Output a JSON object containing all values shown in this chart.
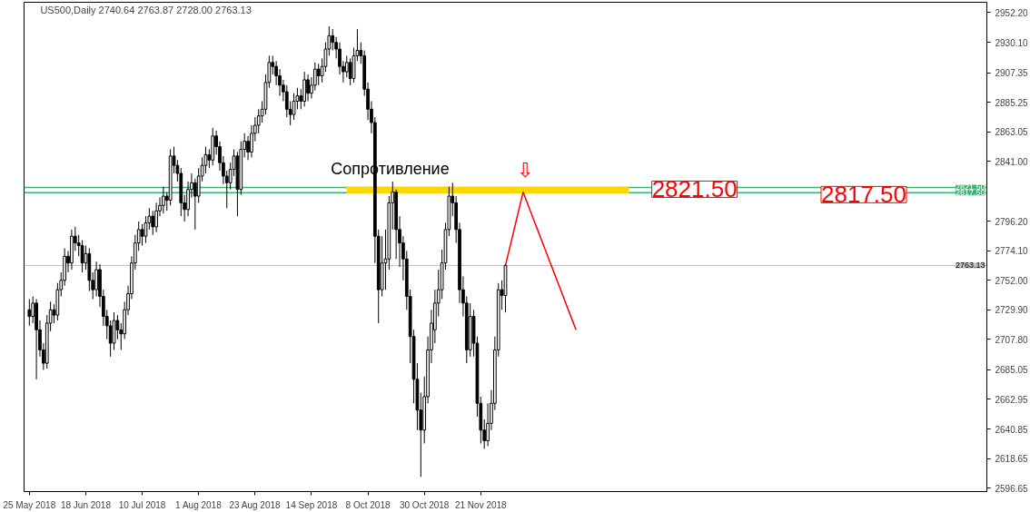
{
  "chart_data": {
    "type": "candlestick",
    "title": "US500,Daily  2740.64 2763.87 2728.00 2763.13",
    "categories": [
      "25 May 2018",
      null,
      null,
      null,
      null,
      null,
      null,
      null,
      null,
      null,
      null,
      null,
      null,
      null,
      null,
      null,
      "18 Jun 2018",
      null,
      null,
      null,
      null,
      null,
      null,
      null,
      null,
      null,
      null,
      null,
      null,
      null,
      null,
      null,
      "10 Jul 2018",
      null,
      null,
      null,
      null,
      null,
      null,
      null,
      null,
      null,
      null,
      null,
      null,
      null,
      null,
      null,
      "1 Aug 2018",
      null,
      null,
      null,
      null,
      null,
      null,
      null,
      null,
      null,
      null,
      null,
      null,
      null,
      null,
      null,
      "23 Aug 2018",
      null,
      null,
      null,
      null,
      null,
      null,
      null,
      null,
      null,
      null,
      null,
      null,
      null,
      null,
      null,
      "14 Sep 2018",
      null,
      null,
      null,
      null,
      null,
      null,
      null,
      null,
      null,
      null,
      null,
      null,
      null,
      null,
      null,
      "8 Oct 2018",
      null,
      null,
      null,
      null,
      null,
      null,
      null,
      null,
      null,
      null,
      null,
      null,
      null,
      null,
      null,
      "30 Oct 2018",
      null,
      null,
      null,
      null,
      null,
      null,
      null,
      null,
      null,
      null,
      null,
      null,
      null,
      null,
      null,
      "21 Nov 2018",
      null,
      null,
      null,
      null,
      null,
      null,
      null,
      null,
      null,
      null,
      null,
      null,
      null,
      null,
      null,
      null,
      null,
      null,
      null,
      null,
      null,
      null,
      null,
      null,
      null,
      null,
      null,
      null,
      null,
      null,
      null,
      null,
      null,
      null,
      null,
      null,
      null,
      null,
      null,
      null,
      null,
      null,
      null,
      null,
      null,
      null,
      null,
      null,
      null,
      null,
      null,
      null,
      null,
      null,
      null,
      null,
      null,
      null,
      null,
      null,
      null,
      null,
      null,
      null,
      null,
      null,
      null,
      null,
      null,
      null,
      null,
      null,
      null,
      null,
      null,
      null,
      null,
      null,
      null,
      null,
      null,
      null,
      null,
      null,
      null,
      null,
      null,
      null,
      null,
      null,
      null,
      null,
      null,
      null,
      null,
      null,
      null,
      null,
      null,
      null,
      null,
      null,
      null,
      null,
      null,
      null,
      null,
      null,
      null,
      null,
      null,
      null,
      null,
      null,
      null,
      null,
      null,
      null,
      null,
      null,
      null,
      null,
      null,
      null,
      null,
      null,
      null,
      null,
      null,
      null,
      null,
      null,
      null,
      null,
      null,
      null,
      null,
      null,
      null,
      null,
      null,
      null,
      null
    ],
    "ohlc": [
      [
        2730,
        2738,
        2718,
        2725
      ],
      [
        2725,
        2740,
        2720,
        2735
      ],
      [
        2735,
        2738,
        2678,
        2715
      ],
      [
        2715,
        2722,
        2695,
        2700
      ],
      [
        2700,
        2705,
        2685,
        2690
      ],
      [
        2690,
        2726,
        2686,
        2720
      ],
      [
        2720,
        2736,
        2714,
        2730
      ],
      [
        2730,
        2734,
        2720,
        2726
      ],
      [
        2726,
        2750,
        2722,
        2745
      ],
      [
        2745,
        2758,
        2740,
        2752
      ],
      [
        2752,
        2776,
        2748,
        2770
      ],
      [
        2770,
        2774,
        2758,
        2765
      ],
      [
        2765,
        2790,
        2760,
        2785
      ],
      [
        2785,
        2792,
        2774,
        2780
      ],
      [
        2780,
        2786,
        2770,
        2778
      ],
      [
        2778,
        2782,
        2758,
        2765
      ],
      [
        2765,
        2778,
        2760,
        2772
      ],
      [
        2772,
        2776,
        2744,
        2752
      ],
      [
        2752,
        2758,
        2738,
        2745
      ],
      [
        2745,
        2766,
        2740,
        2760
      ],
      [
        2760,
        2764,
        2732,
        2740
      ],
      [
        2740,
        2745,
        2718,
        2725
      ],
      [
        2725,
        2730,
        2708,
        2718
      ],
      [
        2718,
        2722,
        2695,
        2705
      ],
      [
        2705,
        2728,
        2700,
        2722
      ],
      [
        2722,
        2726,
        2708,
        2715
      ],
      [
        2715,
        2720,
        2700,
        2712
      ],
      [
        2712,
        2736,
        2708,
        2730
      ],
      [
        2730,
        2748,
        2726,
        2742
      ],
      [
        2742,
        2770,
        2738,
        2765
      ],
      [
        2765,
        2786,
        2760,
        2780
      ],
      [
        2780,
        2796,
        2774,
        2790
      ],
      [
        2790,
        2794,
        2778,
        2785
      ],
      [
        2785,
        2800,
        2780,
        2795
      ],
      [
        2795,
        2806,
        2790,
        2800
      ],
      [
        2800,
        2804,
        2786,
        2792
      ],
      [
        2792,
        2810,
        2788,
        2804
      ],
      [
        2804,
        2814,
        2800,
        2808
      ],
      [
        2808,
        2822,
        2802,
        2815
      ],
      [
        2815,
        2818,
        2804,
        2812
      ],
      [
        2812,
        2850,
        2808,
        2845
      ],
      [
        2845,
        2852,
        2832,
        2838
      ],
      [
        2838,
        2842,
        2826,
        2832
      ],
      [
        2832,
        2836,
        2800,
        2810
      ],
      [
        2810,
        2816,
        2796,
        2805
      ],
      [
        2805,
        2826,
        2800,
        2820
      ],
      [
        2820,
        2832,
        2814,
        2825
      ],
      [
        2825,
        2828,
        2790,
        2815
      ],
      [
        2815,
        2836,
        2810,
        2830
      ],
      [
        2830,
        2844,
        2826,
        2838
      ],
      [
        2838,
        2852,
        2832,
        2846
      ],
      [
        2846,
        2850,
        2836,
        2842
      ],
      [
        2842,
        2866,
        2838,
        2860
      ],
      [
        2860,
        2864,
        2846,
        2852
      ],
      [
        2852,
        2856,
        2834,
        2840
      ],
      [
        2840,
        2845,
        2824,
        2830
      ],
      [
        2830,
        2834,
        2806,
        2825
      ],
      [
        2825,
        2840,
        2820,
        2835
      ],
      [
        2835,
        2850,
        2830,
        2845
      ],
      [
        2845,
        2848,
        2800,
        2820
      ],
      [
        2820,
        2856,
        2816,
        2850
      ],
      [
        2850,
        2862,
        2844,
        2856
      ],
      [
        2856,
        2860,
        2842,
        2848
      ],
      [
        2848,
        2868,
        2844,
        2862
      ],
      [
        2862,
        2874,
        2856,
        2868
      ],
      [
        2868,
        2880,
        2862,
        2875
      ],
      [
        2875,
        2886,
        2870,
        2880
      ],
      [
        2880,
        2906,
        2876,
        2900
      ],
      [
        2900,
        2920,
        2896,
        2915
      ],
      [
        2915,
        2920,
        2906,
        2912
      ],
      [
        2912,
        2916,
        2898,
        2905
      ],
      [
        2905,
        2910,
        2890,
        2898
      ],
      [
        2898,
        2902,
        2886,
        2893
      ],
      [
        2893,
        2898,
        2874,
        2880
      ],
      [
        2880,
        2886,
        2868,
        2876
      ],
      [
        2876,
        2892,
        2872,
        2886
      ],
      [
        2886,
        2896,
        2880,
        2890
      ],
      [
        2890,
        2895,
        2880,
        2886
      ],
      [
        2886,
        2908,
        2882,
        2902
      ],
      [
        2902,
        2906,
        2886,
        2892
      ],
      [
        2892,
        2904,
        2888,
        2898
      ],
      [
        2898,
        2915,
        2894,
        2910
      ],
      [
        2910,
        2914,
        2898,
        2905
      ],
      [
        2905,
        2918,
        2900,
        2912
      ],
      [
        2912,
        2930,
        2908,
        2925
      ],
      [
        2925,
        2942,
        2920,
        2935
      ],
      [
        2935,
        2940,
        2924,
        2930
      ],
      [
        2930,
        2934,
        2918,
        2925
      ],
      [
        2925,
        2930,
        2906,
        2912
      ],
      [
        2912,
        2916,
        2900,
        2908
      ],
      [
        2908,
        2920,
        2904,
        2915
      ],
      [
        2915,
        2918,
        2898,
        2903
      ],
      [
        2903,
        2926,
        2900,
        2920
      ],
      [
        2920,
        2940,
        2916,
        2924
      ],
      [
        2924,
        2930,
        2914,
        2920
      ],
      [
        2920,
        2924,
        2890,
        2895
      ],
      [
        2895,
        2900,
        2872,
        2880
      ],
      [
        2880,
        2886,
        2862,
        2870
      ],
      [
        2870,
        2874,
        2765,
        2785
      ],
      [
        2785,
        2790,
        2720,
        2745
      ],
      [
        2745,
        2785,
        2740,
        2765
      ],
      [
        2765,
        2790,
        2745,
        2768
      ],
      [
        2768,
        2815,
        2760,
        2810
      ],
      [
        2810,
        2826,
        2790,
        2818
      ],
      [
        2818,
        2820,
        2768,
        2790
      ],
      [
        2790,
        2800,
        2762,
        2780
      ],
      [
        2780,
        2785,
        2752,
        2768
      ],
      [
        2768,
        2774,
        2730,
        2740
      ],
      [
        2740,
        2745,
        2690,
        2710
      ],
      [
        2710,
        2715,
        2660,
        2678
      ],
      [
        2678,
        2690,
        2640,
        2655
      ],
      [
        2655,
        2668,
        2605,
        2640
      ],
      [
        2640,
        2680,
        2630,
        2665
      ],
      [
        2665,
        2710,
        2660,
        2700
      ],
      [
        2700,
        2730,
        2690,
        2720
      ],
      [
        2715,
        2745,
        2705,
        2735
      ],
      [
        2735,
        2760,
        2725,
        2745
      ],
      [
        2745,
        2775,
        2738,
        2765
      ],
      [
        2765,
        2795,
        2760,
        2790
      ],
      [
        2790,
        2822,
        2785,
        2815
      ],
      [
        2815,
        2825,
        2800,
        2810
      ],
      [
        2810,
        2815,
        2780,
        2790
      ],
      [
        2790,
        2795,
        2735,
        2745
      ],
      [
        2745,
        2755,
        2725,
        2735
      ],
      [
        2735,
        2740,
        2690,
        2700
      ],
      [
        2700,
        2735,
        2695,
        2725
      ],
      [
        2725,
        2730,
        2695,
        2705
      ],
      [
        2705,
        2710,
        2650,
        2660
      ],
      [
        2660,
        2665,
        2630,
        2640
      ],
      [
        2640,
        2648,
        2626,
        2632
      ],
      [
        2632,
        2660,
        2628,
        2645
      ],
      [
        2645,
        2670,
        2640,
        2660
      ],
      [
        2660,
        2710,
        2655,
        2700
      ],
      [
        2700,
        2750,
        2695,
        2745
      ],
      [
        2745,
        2752,
        2730,
        2740.64
      ],
      [
        2740.64,
        2763.87,
        2728,
        2763.13
      ],
      null,
      null,
      null,
      null,
      null,
      null,
      null,
      null,
      null,
      null,
      null,
      null,
      null,
      null,
      null,
      null,
      null,
      null,
      null,
      null,
      null,
      null,
      null,
      null,
      null,
      null,
      null,
      null,
      null,
      null,
      null,
      null,
      null,
      null,
      null,
      null,
      null,
      null,
      null,
      null,
      null,
      null,
      null,
      null,
      null,
      null,
      null,
      null,
      null,
      null,
      null,
      null,
      null,
      null,
      null,
      null,
      null,
      null,
      null,
      null,
      null,
      null,
      null,
      null,
      null,
      null,
      null,
      null,
      null,
      null,
      null,
      null,
      null,
      null,
      null,
      null,
      null,
      null,
      null,
      null,
      null,
      null,
      null,
      null,
      null,
      null,
      null,
      null,
      null,
      null,
      null,
      null,
      null,
      null,
      null,
      null,
      null,
      null,
      null,
      null,
      null,
      null,
      null,
      null,
      null,
      null,
      null,
      null,
      null,
      null,
      null,
      null,
      null,
      null,
      null,
      null,
      null,
      null,
      null,
      null,
      null,
      null,
      null,
      null,
      null,
      null,
      null,
      null,
      null,
      null,
      null,
      null,
      null,
      null,
      null,
      null
    ],
    "series": [
      {
        "type": "line",
        "color": "#ffd700",
        "values": [
          null,
          null,
          null,
          null,
          null,
          null,
          null,
          null,
          null,
          null,
          null,
          null,
          null,
          null,
          null,
          null,
          null,
          null,
          null,
          null,
          null,
          null,
          null,
          null,
          null,
          null,
          null,
          null,
          null,
          null,
          null,
          null,
          null,
          null,
          null,
          null,
          null,
          null,
          null,
          null,
          null,
          null,
          null,
          null,
          null,
          null,
          null,
          null,
          null,
          null,
          null,
          null,
          null,
          null,
          null,
          null,
          null,
          null,
          null,
          null,
          null,
          null,
          null,
          null,
          null,
          null,
          null,
          null,
          null,
          null,
          null,
          null,
          null,
          null,
          null,
          null,
          null,
          null,
          null,
          null,
          null,
          null,
          null,
          null,
          null,
          null,
          null,
          null,
          null,
          null,
          2819.5,
          2819.5,
          2819.5,
          2819.5,
          2819.5,
          2819.5,
          2819.5,
          2819.5,
          2819.5,
          2819.5,
          2819.5,
          2819.5,
          2819.5,
          2819.5,
          2819.5,
          2819.5,
          2819.5,
          2819.5,
          2819.5,
          2819.5,
          2819.5,
          2819.5,
          2819.5,
          2819.5,
          2819.5,
          2819.5,
          2819.5,
          2819.5,
          2819.5,
          2819.5,
          2819.5,
          2819.5,
          2819.5,
          2819.5,
          2819.5,
          2819.5,
          2819.5,
          2819.5,
          2819.5,
          2819.5,
          2819.5,
          2819.5,
          2819.5,
          2819.5,
          2819.5,
          2819.5,
          2819.5,
          2819.5,
          2819.5,
          2819.5,
          2819.5,
          2819.5,
          2819.5,
          2819.5,
          2819.5,
          2819.5,
          2819.5,
          2819.5,
          2819.5,
          2819.5,
          2819.5,
          2819.5,
          2819.5,
          2819.5,
          2819.5,
          2819.5,
          2819.5,
          2819.5,
          2819.5,
          2819.5,
          2819.5,
          2819.5,
          2819.5,
          2819.5,
          2819.5,
          2819.5,
          2819.5,
          2819.5,
          2819.5,
          2819.5,
          2819.5,
          null,
          null,
          null,
          null,
          null,
          null,
          null,
          null,
          null,
          null,
          null,
          null,
          null,
          null,
          null,
          null,
          null,
          null,
          null,
          null,
          null,
          null,
          null,
          null,
          null,
          null,
          null,
          null,
          null,
          null,
          null,
          null,
          null,
          null,
          null,
          null,
          null,
          null,
          null,
          null,
          null,
          null,
          null,
          null,
          null,
          null,
          null,
          null,
          null,
          null,
          null,
          null,
          null,
          null,
          null,
          null,
          null,
          null,
          null,
          null,
          null,
          null,
          null,
          null,
          null,
          null,
          null,
          null,
          null,
          null,
          null,
          null,
          null,
          null,
          null,
          null,
          null,
          null,
          null,
          null,
          null,
          null,
          null,
          null,
          null,
          null,
          null,
          null,
          null,
          null,
          null,
          null,
          null,
          null,
          null,
          null,
          null,
          null,
          null,
          null,
          null
        ]
      },
      {
        "type": "line",
        "color": "#ff0000",
        "values": [
          null,
          null,
          null,
          null,
          null,
          null,
          null,
          null,
          null,
          null,
          null,
          null,
          null,
          null,
          null,
          null,
          null,
          null,
          null,
          null,
          null,
          null,
          null,
          null,
          null,
          null,
          null,
          null,
          null,
          null,
          null,
          null,
          null,
          null,
          null,
          null,
          null,
          null,
          null,
          null,
          null,
          null,
          null,
          null,
          null,
          null,
          null,
          null,
          null,
          null,
          null,
          null,
          null,
          null,
          null,
          null,
          null,
          null,
          null,
          null,
          null,
          null,
          null,
          null,
          null,
          null,
          null,
          null,
          null,
          null,
          null,
          null,
          null,
          null,
          null,
          null,
          null,
          null,
          null,
          null,
          null,
          null,
          null,
          null,
          null,
          null,
          null,
          null,
          null,
          null,
          null,
          null,
          null,
          null,
          null,
          null,
          null,
          null,
          null,
          null,
          null,
          null,
          null,
          null,
          null,
          null,
          null,
          null,
          null,
          null,
          null,
          null,
          null,
          null,
          null,
          null,
          null,
          null,
          null,
          null,
          null,
          null,
          null,
          null,
          null,
          null,
          null,
          null,
          null,
          null,
          null,
          null,
          null,
          null,
          null,
          2763.13,
          2774,
          2785,
          2796,
          2807,
          2818,
          2811.1,
          2804.3,
          2797.4,
          2790.5,
          2783.7,
          2776.8,
          2769.9,
          2763.1,
          2756.2,
          2749.3,
          2742.5,
          2735.6,
          2728.7,
          2721.9,
          2715,
          null,
          null,
          null,
          null,
          null,
          null,
          null,
          null,
          null,
          null,
          null,
          null,
          null,
          null,
          null,
          null,
          null,
          null,
          null,
          null,
          null,
          null,
          null,
          null,
          null,
          null,
          null,
          null,
          null,
          null,
          null,
          null,
          null,
          null,
          null,
          null,
          null,
          null,
          null,
          null,
          null,
          null,
          null,
          null,
          null,
          null,
          null,
          null,
          null,
          null,
          null,
          null,
          null,
          null,
          null,
          null,
          null,
          null,
          null,
          null,
          null,
          null,
          null,
          null,
          null,
          null,
          null,
          null,
          null,
          null,
          null,
          null,
          null,
          null,
          null,
          null,
          null,
          null,
          null,
          null,
          null,
          null,
          null,
          null,
          null,
          null,
          null,
          null,
          null,
          null,
          null,
          null,
          null,
          null,
          null,
          null,
          null,
          null,
          null,
          null,
          null,
          null,
          null,
          null,
          null,
          null,
          null,
          null,
          null,
          null,
          null,
          null,
          null,
          null,
          null,
          null
        ]
      }
    ],
    "ylim": [
      2594,
      2960
    ],
    "yticks": [
      {
        "value": 2596.65,
        "label": "2596.65"
      },
      {
        "value": 2618.65,
        "label": "2618.65"
      },
      {
        "value": 2640.85,
        "label": "2640.85"
      },
      {
        "value": 2662.95,
        "label": "2662.95"
      },
      {
        "value": 2685.05,
        "label": "2685.05"
      },
      {
        "value": 2707.8,
        "label": "2707.80"
      },
      {
        "value": 2729.9,
        "label": "2729.90"
      },
      {
        "value": 2752.0,
        "label": "2752.00"
      },
      {
        "value": 2774.1,
        "label": "2774.10"
      },
      {
        "value": 2796.2,
        "label": "2796.20"
      },
      {
        "value": 2841.0,
        "label": "2841.00"
      },
      {
        "value": 2863.05,
        "label": "2863.05"
      },
      {
        "value": 2885.25,
        "label": "2885.25"
      },
      {
        "value": 2907.35,
        "label": "2907.35"
      },
      {
        "value": 2930.1,
        "label": "2930.10"
      },
      {
        "value": 2952.2,
        "label": "2952.20"
      }
    ],
    "ref_lines": [
      {
        "axis": "y",
        "value": 2821.5,
        "label": "2821.50",
        "color": "#3cb371"
      },
      {
        "axis": "y",
        "value": 2817.5,
        "label": "2817.50",
        "color": "#3cb371"
      },
      {
        "axis": "y",
        "value": 2763.13,
        "label": "2763.13",
        "color": "#c0c0c0"
      }
    ],
    "annotations": [
      {
        "text": "Сопротивление",
        "y": 2821.5
      },
      {
        "text": "⇩",
        "y": 2821.5
      },
      {
        "text": "2821.50",
        "y": 2821.5
      },
      {
        "text": "2817.50",
        "y": 2817.5
      }
    ]
  }
}
